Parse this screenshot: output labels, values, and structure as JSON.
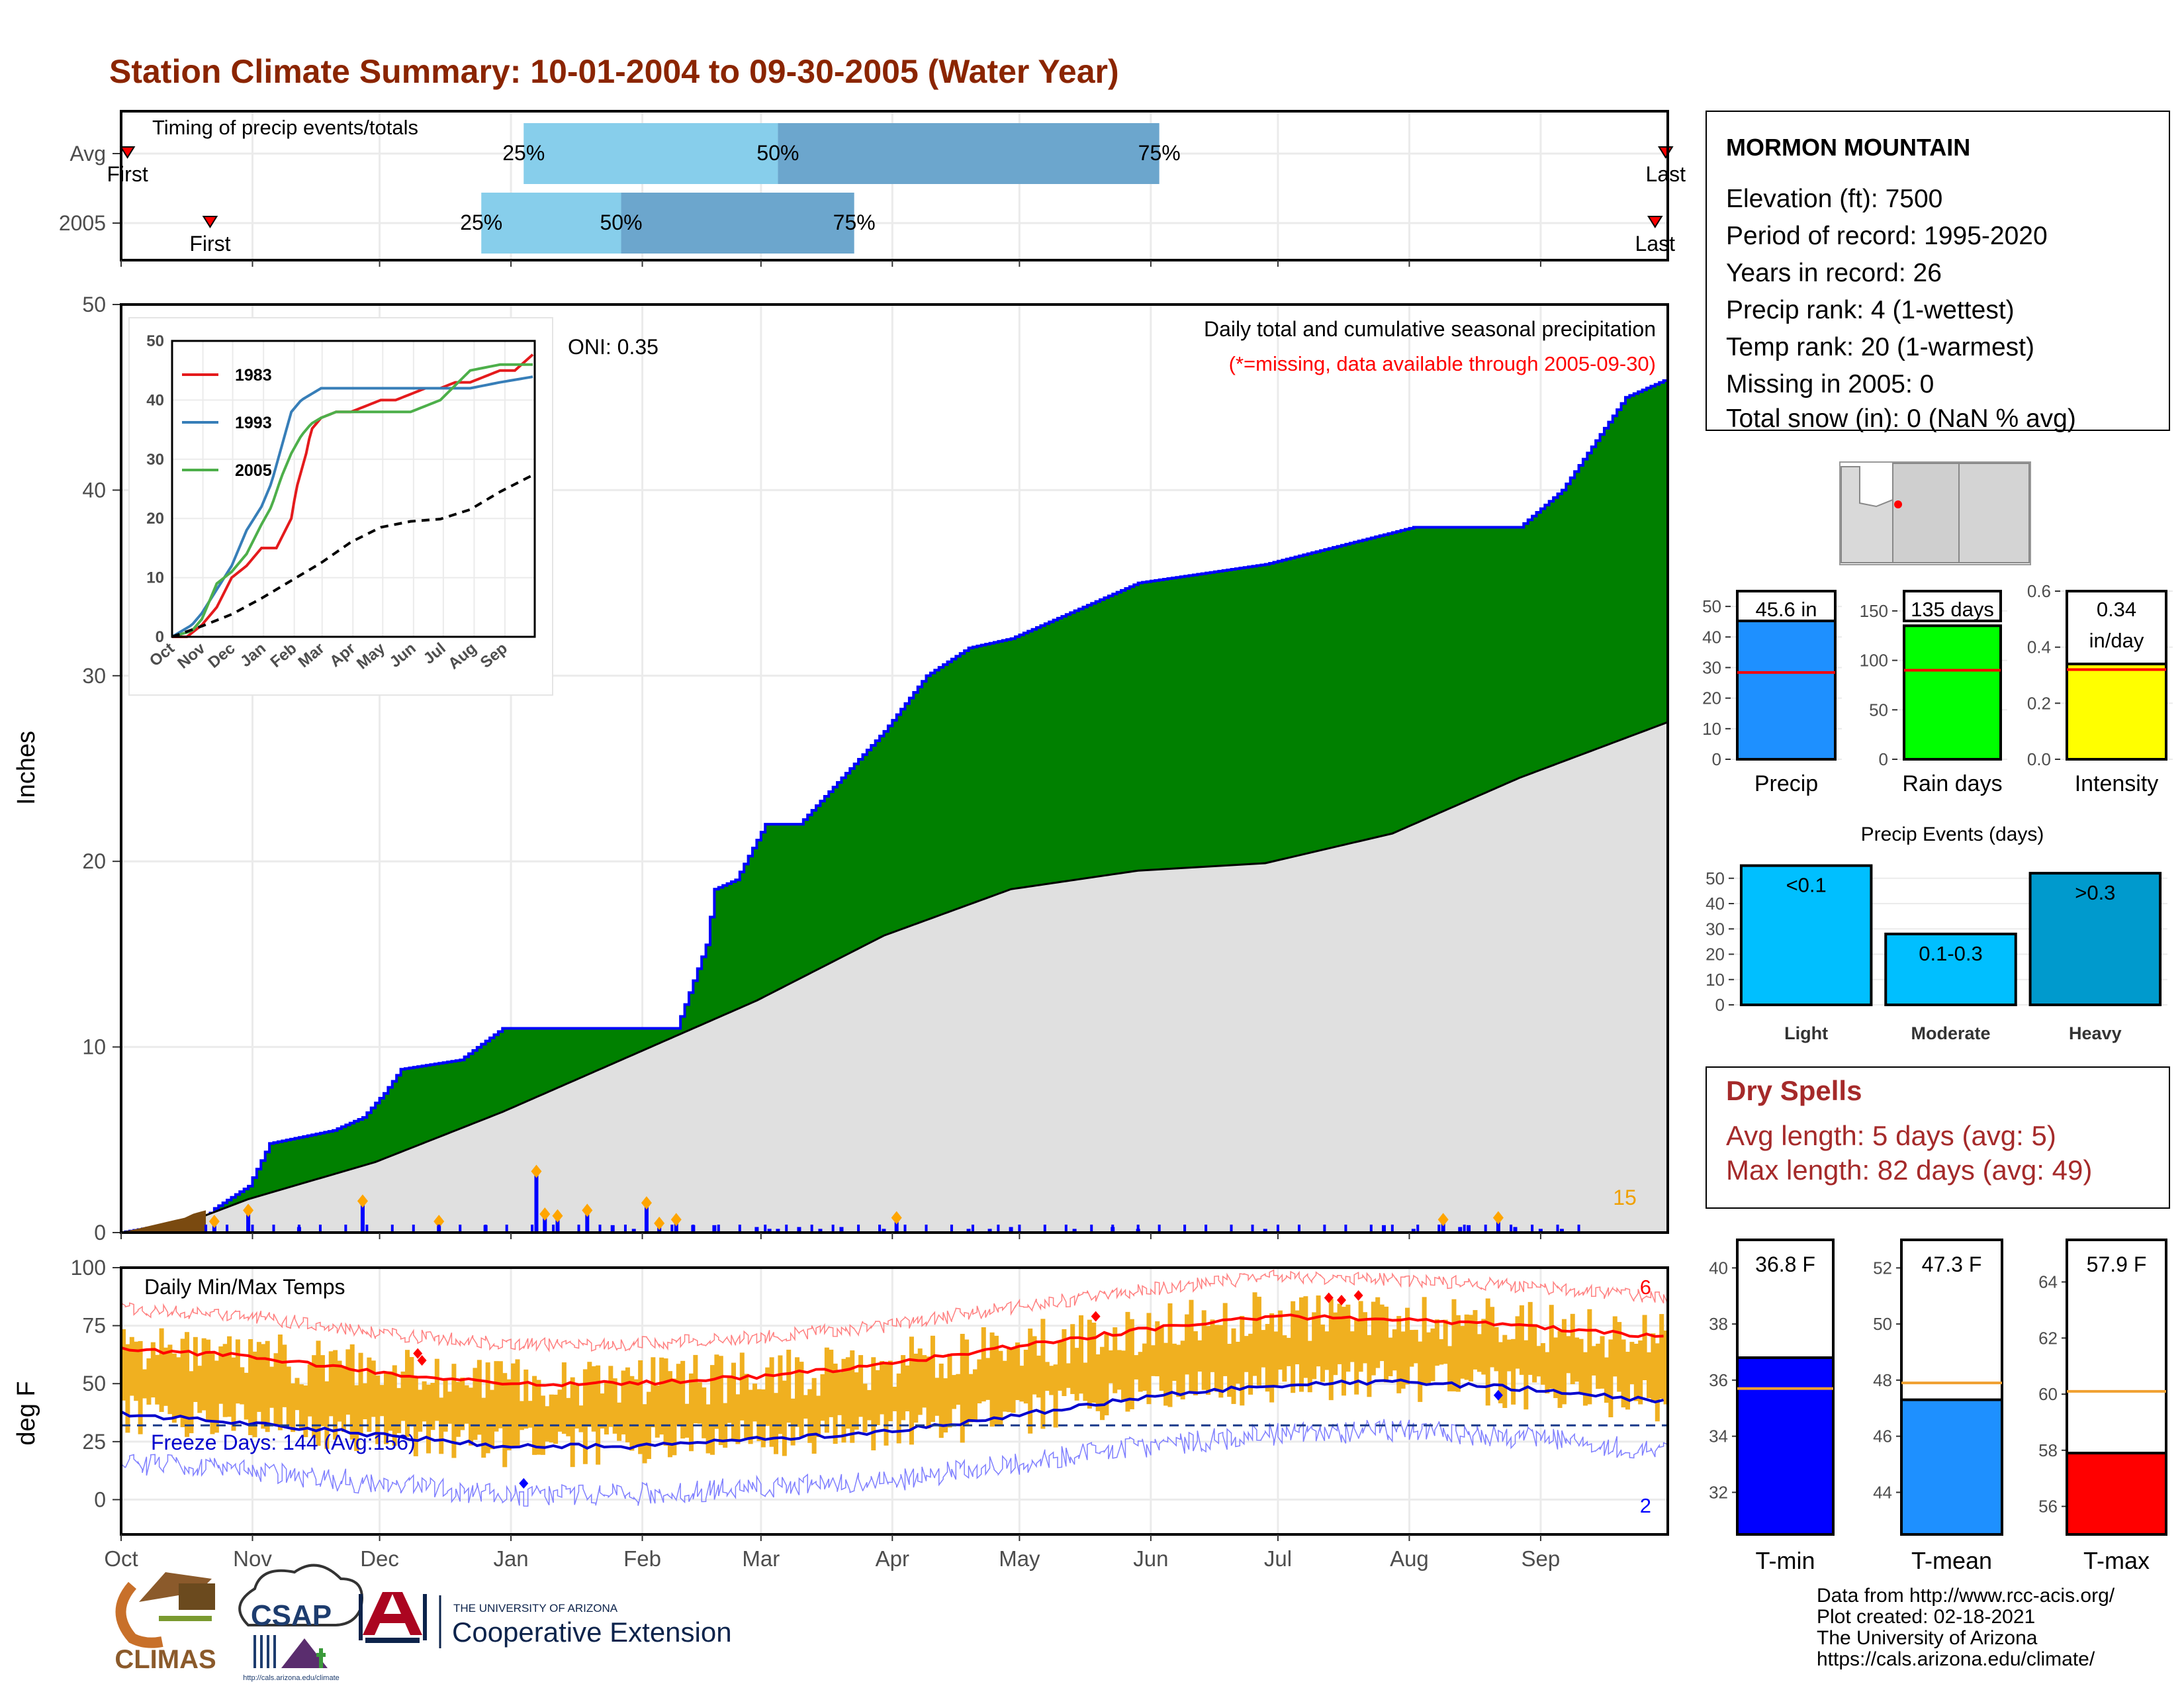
{
  "title": "Station Climate Summary: 10-01-2004 to 09-30-2005 (Water Year)",
  "colors": {
    "title": "#8B2500",
    "cum_fill": "#008000",
    "cum_line": "#0000FF",
    "avg_fill": "#E0E0E0",
    "light_blue": "#87CEEB",
    "steel_blue": "#6CA6CD",
    "precip_bar": "#1E90FF",
    "raindays_bar": "#00FF00",
    "intensity_bar": "#FFFF00",
    "events_bar": "#00BFFF",
    "events_heavy": "#009ACD",
    "temp_bar": "#F0B020",
    "tmax_line": "#FF0000",
    "tmin_line": "#0000CD",
    "tmin_bar": "#0000FF",
    "tmean_bar": "#1E90FF",
    "tmax_bar": "#FF0000",
    "dry_spell": "#A52A2A"
  },
  "timing": {
    "label": "Timing of precip events/totals",
    "rows": [
      {
        "name": "Avg",
        "first_label": "First",
        "last_label": "Last",
        "first_x": 1.5,
        "last_x": 364.5,
        "p25": 95,
        "p50": 155,
        "p75": 245,
        "p25_label": "25%",
        "p50_label": "50%",
        "p75_label": "75%"
      },
      {
        "name": "2005",
        "first_label": "First",
        "last_label": "Last",
        "first_x": 21,
        "last_x": 362,
        "p25": 85,
        "p50": 118,
        "p75": 173,
        "p25_label": "25%",
        "p50_label": "50%",
        "p75_label": "75%"
      }
    ]
  },
  "months": [
    "Oct",
    "Nov",
    "Dec",
    "Jan",
    "Feb",
    "Mar",
    "Apr",
    "May",
    "Jun",
    "Jul",
    "Aug",
    "Sep"
  ],
  "month_days": [
    0,
    31,
    61,
    92,
    123,
    151,
    182,
    212,
    243,
    273,
    304,
    335
  ],
  "main_chart": {
    "ylabel": "Inches",
    "ylim": [
      0,
      50
    ],
    "yticks": [
      0,
      10,
      20,
      30,
      40,
      50
    ],
    "oni_label": "ONI: 0.35",
    "caption": "Daily total and cumulative seasonal precipitation",
    "missing_note": "(*=missing, data available through 2005-09-30)",
    "count_label": "15"
  },
  "chart_data": [
    {
      "type": "area",
      "title": "Daily total and cumulative seasonal precipitation",
      "ylabel": "Inches",
      "ylim": [
        0,
        50
      ],
      "series": [
        {
          "name": "2005 cumulative",
          "x": [
            0,
            20,
            22,
            30,
            35,
            50,
            57,
            62,
            66,
            80,
            90,
            95,
            100,
            110,
            131,
            138,
            140,
            145,
            152,
            160,
            170,
            180,
            190,
            200,
            210,
            240,
            270,
            305,
            318,
            322,
            330,
            340,
            355,
            365
          ],
          "y": [
            0,
            0.8,
            1.3,
            2.5,
            4.8,
            5.5,
            6.2,
            7.5,
            8.8,
            9.3,
            11,
            11,
            11,
            11,
            11,
            15.5,
            18.5,
            19,
            22,
            22,
            24.5,
            27,
            30,
            31.5,
            32,
            35,
            36,
            38,
            38,
            38,
            38,
            40,
            45,
            46
          ]
        },
        {
          "name": "average cumulative",
          "x": [
            0,
            15,
            30,
            60,
            90,
            120,
            150,
            180,
            210,
            240,
            270,
            300,
            330,
            365
          ],
          "y": [
            0,
            0.5,
            1.8,
            3.8,
            6.5,
            9.5,
            12.5,
            16,
            18.5,
            19.5,
            19.9,
            21.5,
            24.5,
            27.5
          ]
        },
        {
          "name": "daily precip",
          "x": [
            22,
            30,
            42,
            57,
            75,
            86,
            98,
            100,
            103,
            110,
            116,
            121,
            124,
            127,
            131,
            135,
            140,
            150,
            153,
            155,
            160,
            165,
            170,
            180,
            183,
            200,
            205,
            210,
            225,
            234,
            240,
            270,
            298,
            305,
            312,
            316,
            318,
            325,
            329,
            335,
            340
          ],
          "y": [
            0.6,
            1.2,
            0.3,
            1.7,
            0.6,
            0.4,
            3.3,
            1.0,
            0.9,
            1.2,
            0.4,
            0.2,
            1.6,
            0.5,
            0.7,
            0.4,
            0.4,
            0.3,
            0.2,
            0.2,
            0.3,
            0.2,
            0.3,
            0.2,
            0.8,
            0.2,
            0.2,
            0.3,
            0.2,
            0.3,
            0.2,
            0.2,
            0.4,
            0.2,
            0.7,
            0.3,
            0.4,
            0.8,
            0.3,
            0.2,
            0.2
          ]
        }
      ]
    },
    {
      "type": "line",
      "title": "",
      "xlabels": [
        "Oct",
        "Nov",
        "Dec",
        "Jan",
        "Feb",
        "Mar",
        "Apr",
        "May",
        "Jun",
        "Jul",
        "Aug",
        "Sep"
      ],
      "ylim": [
        0,
        50
      ],
      "series": [
        {
          "name": "1983",
          "color": "#E41A1C",
          "x": [
            0,
            15,
            30,
            45,
            60,
            75,
            90,
            105,
            120,
            125,
            135,
            140,
            150,
            165,
            180,
            195,
            210,
            225,
            240,
            255,
            270,
            285,
            300,
            315,
            330,
            345,
            365
          ],
          "y": [
            0,
            0,
            2,
            5,
            10,
            12,
            15,
            15,
            20,
            25,
            31,
            35,
            37,
            38,
            38,
            39,
            40,
            40,
            41,
            42,
            42,
            43,
            43,
            44,
            45,
            45,
            48
          ]
        },
        {
          "name": "1993",
          "color": "#377EB8",
          "x": [
            0,
            20,
            30,
            45,
            60,
            75,
            90,
            100,
            110,
            120,
            130,
            140,
            150,
            165,
            180,
            195,
            210,
            240,
            270,
            300,
            330,
            365
          ],
          "y": [
            0,
            2,
            4,
            8,
            12,
            18,
            22,
            26,
            32,
            38,
            40,
            41,
            42,
            42,
            42,
            42,
            42,
            42,
            42,
            42,
            43,
            44
          ]
        },
        {
          "name": "2005",
          "color": "#4DAF4A",
          "x": [
            0,
            20,
            30,
            45,
            60,
            75,
            90,
            100,
            110,
            120,
            130,
            140,
            150,
            165,
            180,
            195,
            210,
            240,
            270,
            300,
            330,
            365
          ],
          "y": [
            0,
            1,
            3,
            9,
            11,
            14,
            19,
            22,
            27,
            31,
            34,
            36,
            37,
            38,
            38,
            38,
            38,
            38,
            40,
            45,
            46,
            46
          ]
        },
        {
          "name": "average",
          "color": "#000000",
          "x": [
            0,
            30,
            60,
            90,
            120,
            150,
            180,
            210,
            240,
            270,
            300,
            330,
            365
          ],
          "y": [
            0,
            1.8,
            3.8,
            6.5,
            9.5,
            12.5,
            16,
            18.5,
            19.5,
            19.9,
            21.5,
            24.5,
            27.5
          ]
        }
      ],
      "yticks": [
        0,
        10,
        20,
        30,
        40,
        50
      ]
    },
    {
      "type": "bar",
      "title": "",
      "categories": [
        "Precip"
      ],
      "values": [
        45.6
      ],
      "avg": 28.4,
      "label": "45.6 in",
      "ylim": [
        0,
        55
      ],
      "yticks": [
        0,
        10,
        20,
        30,
        40,
        50
      ]
    },
    {
      "type": "bar",
      "title": "",
      "categories": [
        "Rain days"
      ],
      "values": [
        135
      ],
      "avg": 90,
      "label": "135 days",
      "ylim": [
        0,
        170
      ],
      "yticks": [
        0,
        50,
        100,
        150
      ]
    },
    {
      "type": "bar",
      "title": "",
      "categories": [
        "Intensity"
      ],
      "values": [
        0.34
      ],
      "avg": 0.32,
      "label_lines": [
        "0.34",
        "in/day"
      ],
      "ylim": [
        0,
        0.6
      ],
      "yticks": [
        0.0,
        0.2,
        0.4,
        0.6
      ]
    },
    {
      "type": "bar",
      "title": "Precip Events (days)",
      "categories": [
        "Light",
        "Moderate",
        "Heavy"
      ],
      "values": [
        55,
        28,
        52
      ],
      "bar_labels": [
        "<0.1",
        "0.1-0.3",
        ">0.3"
      ],
      "ylim": [
        0,
        57
      ],
      "yticks": [
        0,
        10,
        20,
        30,
        40,
        50
      ]
    },
    {
      "type": "bar",
      "title": "Daily Min/Max Temps",
      "ylabel": "deg F",
      "ylim": [
        -15,
        100
      ],
      "yticks": [
        0,
        25,
        50,
        75,
        100
      ],
      "freeze_days_label": "Freeze Days: 144 (Avg:156)",
      "freeze_line": 32,
      "count_high": "6",
      "count_low": "2",
      "tmax_avg_line": {
        "x": [
          0,
          30,
          60,
          90,
          120,
          150,
          180,
          210,
          240,
          270,
          300,
          330,
          365
        ],
        "y": [
          65,
          62,
          55,
          50,
          50,
          53,
          58,
          66,
          73,
          79,
          78,
          75,
          70
        ]
      },
      "tmin_avg_line": {
        "x": [
          0,
          30,
          60,
          90,
          120,
          150,
          180,
          210,
          240,
          270,
          300,
          330,
          365
        ],
        "y": [
          37,
          33,
          28,
          23,
          23,
          26,
          29,
          36,
          44,
          49,
          51,
          48,
          42
        ]
      }
    },
    {
      "type": "bar",
      "title": "",
      "categories": [
        "T-min"
      ],
      "values": [
        36.8
      ],
      "avg": 35.7,
      "label": "36.8 F",
      "ylim": [
        30.5,
        41
      ],
      "yticks": [
        32,
        34,
        36,
        38,
        40
      ]
    },
    {
      "type": "bar",
      "title": "",
      "categories": [
        "T-mean"
      ],
      "values": [
        47.3
      ],
      "avg": 47.9,
      "label": "47.3 F",
      "ylim": [
        42.5,
        53
      ],
      "yticks": [
        44,
        46,
        48,
        50,
        52
      ]
    },
    {
      "type": "bar",
      "title": "",
      "categories": [
        "T-max"
      ],
      "values": [
        57.9
      ],
      "avg": 60.1,
      "label": "57.9 F",
      "ylim": [
        55,
        65.5
      ],
      "yticks": [
        56,
        58,
        60,
        62,
        64
      ]
    }
  ],
  "station": {
    "name": "MORMON MOUNTAIN",
    "lines": [
      "Elevation (ft): 7500",
      "Period of record: 1995-2020",
      "Years in record: 26",
      "Precip rank: 4 (1-wettest)",
      "Temp rank: 20 (1-warmest)",
      "Missing in 2005: 0",
      "Total snow (in): 0 (NaN % avg)"
    ]
  },
  "dry_spells": {
    "title": "Dry Spells",
    "avg_line": "Avg length: 5 days (avg: 5)",
    "max_line": "Max length: 82 days (avg: 49)"
  },
  "footer": {
    "logo_climas": "CLIMAS",
    "logo_csap": "CSAP",
    "csap_url": "http://cals.arizona.edu/climate",
    "ua_small": "THE UNIVERSITY OF ARIZONA",
    "ua_big": "Cooperative Extension",
    "credits": [
      "Data from http://www.rcc-acis.org/",
      "Plot created: 02-18-2021",
      "The University of Arizona",
      "https://cals.arizona.edu/climate/"
    ]
  }
}
